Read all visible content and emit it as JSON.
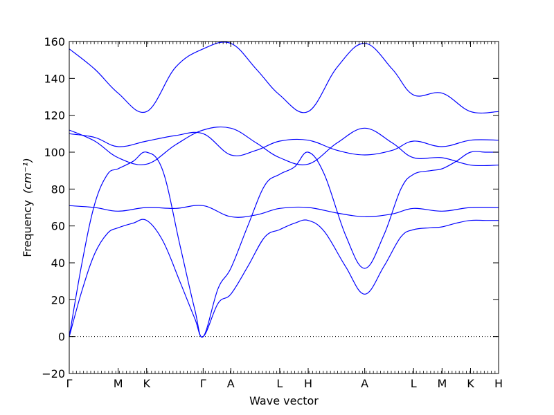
{
  "chart_data": {
    "type": "line",
    "title": "",
    "xlabel": "Wave vector",
    "ylabel_text": "Frequency",
    "ylabel_unit": "(cm⁻¹)",
    "ylim": [
      -20,
      160
    ],
    "xlim": [
      0,
      10.1
    ],
    "yticks": [
      -20,
      0,
      20,
      40,
      60,
      80,
      100,
      120,
      140,
      160
    ],
    "xticks": [
      {
        "label": "Γ",
        "x": 0
      },
      {
        "label": "M",
        "x": 1.15
      },
      {
        "label": "K",
        "x": 1.82
      },
      {
        "label": "Γ",
        "x": 3.15
      },
      {
        "label": "A",
        "x": 3.8
      },
      {
        "label": "L",
        "x": 4.95
      },
      {
        "label": "H",
        "x": 5.62
      },
      {
        "label": "A",
        "x": 6.95
      },
      {
        "label": "L",
        "x": 8.1
      },
      {
        "label": "M",
        "x": 8.77
      },
      {
        "label": "K",
        "x": 9.44
      },
      {
        "label": "H",
        "x": 10.1
      }
    ],
    "zero_line": "dotted",
    "line_color": "#0000ff",
    "series": [
      {
        "x": [
          0,
          0.3,
          0.6,
          0.9,
          1.15,
          1.5,
          1.82,
          2.2,
          2.6,
          2.95,
          3.15,
          3.5,
          3.8,
          4.2,
          4.6,
          4.95,
          5.3,
          5.62,
          6.0,
          6.5,
          6.95,
          7.4,
          7.8,
          8.1,
          8.5,
          8.77,
          9.1,
          9.44,
          9.8,
          10.1
        ],
        "y": [
          0,
          25,
          45,
          56,
          59,
          61.5,
          63,
          52,
          30,
          10,
          0,
          18,
          23,
          38,
          54,
          58,
          61.5,
          63,
          57,
          38,
          23,
          38,
          54,
          58,
          59,
          59.5,
          61.5,
          63,
          63,
          63
        ]
      },
      {
        "x": [
          0,
          0.3,
          0.6,
          0.9,
          1.15,
          1.5,
          1.82,
          2.2,
          2.6,
          2.95,
          3.15,
          3.5,
          3.8,
          4.2,
          4.6,
          4.95,
          5.3,
          5.62,
          6.0,
          6.5,
          6.95,
          7.4,
          7.8,
          8.1,
          8.5,
          8.77,
          9.1,
          9.44,
          9.8,
          10.1
        ],
        "y": [
          0,
          40,
          72,
          88,
          91,
          95,
          100,
          90,
          50,
          15,
          0,
          26,
          37,
          60,
          82,
          88,
          92,
          100,
          88,
          55,
          37,
          55,
          80,
          88,
          90,
          91,
          95,
          100,
          100,
          100
        ]
      },
      {
        "x": [
          0,
          0.6,
          1.15,
          1.82,
          2.5,
          3.15,
          3.8,
          4.4,
          4.95,
          5.62,
          6.3,
          6.95,
          7.6,
          8.1,
          8.77,
          9.44,
          10.1
        ],
        "y": [
          71,
          70,
          68,
          70,
          69.5,
          71,
          65,
          66,
          69.5,
          70,
          67,
          65,
          66.5,
          69.5,
          68,
          70,
          70
        ]
      },
      {
        "x": [
          0,
          0.6,
          1.15,
          1.82,
          2.5,
          3.15,
          3.8,
          4.4,
          4.95,
          5.62,
          6.3,
          6.95,
          7.6,
          8.1,
          8.77,
          9.44,
          10.1
        ],
        "y": [
          112,
          106,
          97,
          93.5,
          104,
          112,
          113,
          105,
          97,
          93.5,
          105,
          113,
          105,
          97,
          97,
          93,
          93
        ]
      },
      {
        "x": [
          0,
          0.6,
          1.15,
          1.82,
          2.5,
          3.15,
          3.8,
          4.4,
          4.95,
          5.62,
          6.3,
          6.95,
          7.6,
          8.1,
          8.77,
          9.44,
          10.1
        ],
        "y": [
          110,
          108,
          103,
          106,
          109,
          110,
          98.5,
          101,
          106,
          106.5,
          101,
          98.5,
          101,
          106,
          103,
          106.5,
          106.5
        ]
      },
      {
        "x": [
          0,
          0.6,
          1.15,
          1.82,
          2.5,
          3.15,
          3.8,
          4.4,
          4.95,
          5.62,
          6.3,
          6.95,
          7.6,
          8.1,
          8.77,
          9.44,
          10.1
        ],
        "y": [
          156,
          145,
          132,
          122,
          146,
          156,
          159,
          145,
          131,
          122,
          146,
          159,
          145,
          131,
          132,
          122,
          122
        ]
      }
    ]
  }
}
